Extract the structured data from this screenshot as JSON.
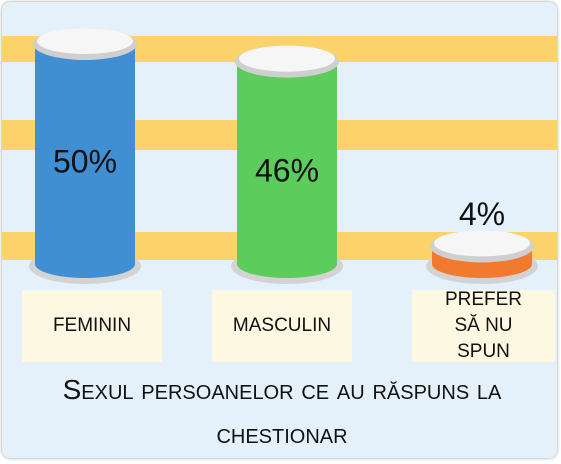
{
  "chart_data": {
    "type": "bar",
    "title": "Sexul persoanelor ce au răspuns la chestionar",
    "categories": [
      "FEMININ",
      "MASCULIN",
      "PREFER SĂ NU SPUN"
    ],
    "values": [
      50,
      46,
      4
    ],
    "value_labels": [
      "50%",
      "46%",
      "4%"
    ],
    "colors": [
      "#3f8fd2",
      "#5ccc5c",
      "#f27a2e"
    ]
  }
}
